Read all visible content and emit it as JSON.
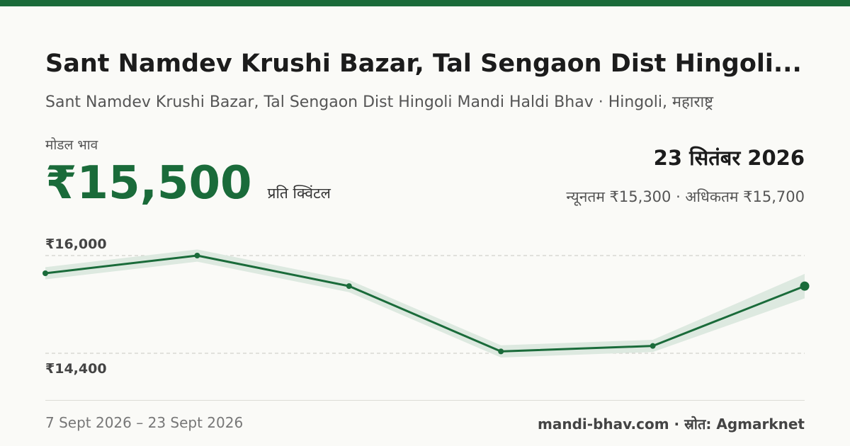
{
  "header": {
    "title": "Sant Namdev Krushi Bazar, Tal Sengaon Dist Hingoli...",
    "subtitle": "Sant Namdev Krushi Bazar, Tal Sengaon Dist Hingoli Mandi Haldi Bhav · Hingoli, महाराष्ट्र"
  },
  "price": {
    "label": "मोडल भाव",
    "value": "₹15,500",
    "unit": "प्रति क्विंटल",
    "date": "23 सितंबर 2026",
    "range": "न्यूनतम ₹15,300 · अधिकतम ₹15,700"
  },
  "chart_data": {
    "type": "line",
    "x": [
      "7 Sept 2026",
      "",
      "",
      "",
      "",
      "23 Sept 2026"
    ],
    "values": [
      15710,
      16000,
      15500,
      14430,
      14520,
      15500
    ],
    "band_low": [
      15610,
      15900,
      15400,
      14330,
      14420,
      15300
    ],
    "band_high": [
      15810,
      16100,
      15600,
      14530,
      14620,
      15700
    ],
    "tick_values": [
      16000,
      14400
    ],
    "tick_labels": [
      "₹16,000",
      "₹14,400"
    ],
    "grid": "dashed horizontal at ticks",
    "colors": {
      "line": "#1a6b3a",
      "band": "#dde9e0",
      "grid": "#c8c8c2",
      "tick": "#444444"
    }
  },
  "footer": {
    "dates": "7 Sept 2026 – 23 Sept 2026",
    "source": "mandi-bhav.com · स्रोत: Agmarknet"
  },
  "colors": {
    "accent": "#1a6b3a",
    "background": "#fafaf7"
  }
}
